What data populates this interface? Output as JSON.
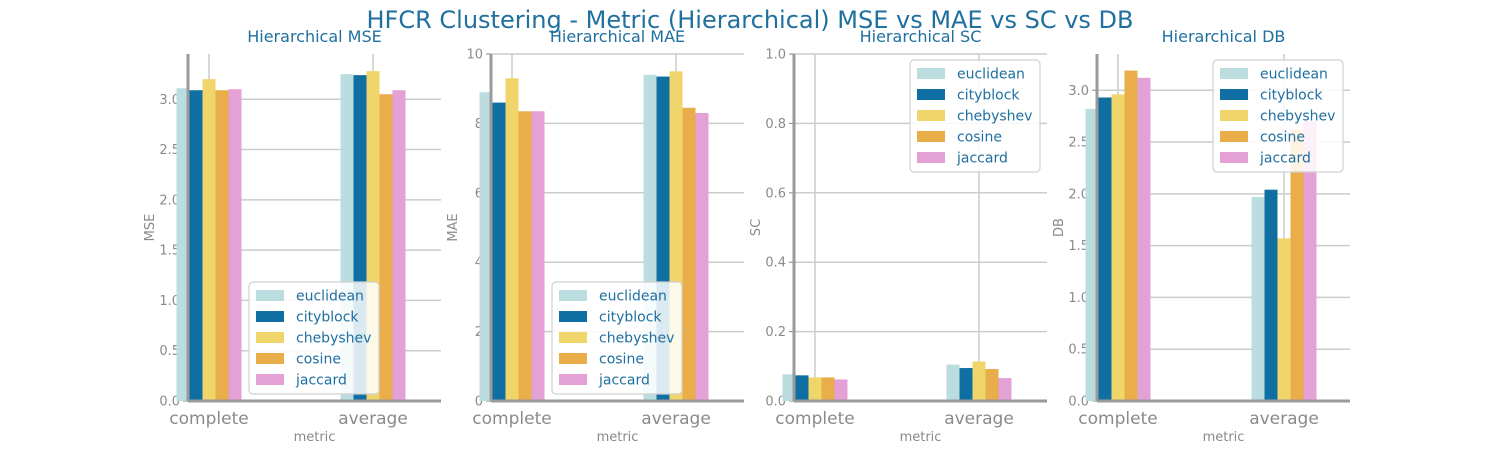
{
  "figure": {
    "title": "HFCR Clustering - Metric (Hierarchical) MSE vs MAE vs SC vs DB"
  },
  "colors": {
    "euclidean": "#bcdde0",
    "cityblock": "#0f6fa3",
    "chebyshev": "#f0d56a",
    "cosine": "#e9ad4a",
    "jaccard": "#e3a1d6",
    "axis": "#9a9a9a",
    "grid": "#cccccc",
    "text": "#1f6f9f"
  },
  "chart_data": [
    {
      "type": "bar",
      "title": "Hierarchical MSE",
      "xlabel": "metric",
      "ylabel": "MSE",
      "categories": [
        "complete",
        "average"
      ],
      "ylim": [
        0,
        3.45
      ],
      "yticks": [
        0.0,
        0.5,
        1.0,
        1.5,
        2.0,
        2.5,
        3.0
      ],
      "ytick_labels": [
        "0.0",
        "0.5",
        "1.0",
        "1.5",
        "2.0",
        "2.5",
        "3.0"
      ],
      "legend": "lower-center",
      "grid": true,
      "series": [
        {
          "name": "euclidean",
          "values": [
            3.11,
            3.25
          ]
        },
        {
          "name": "cityblock",
          "values": [
            3.09,
            3.24
          ]
        },
        {
          "name": "chebyshev",
          "values": [
            3.2,
            3.28
          ]
        },
        {
          "name": "cosine",
          "values": [
            3.09,
            3.05
          ]
        },
        {
          "name": "jaccard",
          "values": [
            3.1,
            3.09
          ]
        }
      ]
    },
    {
      "type": "bar",
      "title": "Hierarchical MAE",
      "xlabel": "metric",
      "ylabel": "MAE",
      "categories": [
        "complete",
        "average"
      ],
      "ylim": [
        0,
        10
      ],
      "yticks": [
        0,
        2,
        4,
        6,
        8,
        10
      ],
      "ytick_labels": [
        "0",
        "2",
        "4",
        "6",
        "8",
        "10"
      ],
      "legend": "lower-center",
      "grid": true,
      "series": [
        {
          "name": "euclidean",
          "values": [
            8.9,
            9.4
          ]
        },
        {
          "name": "cityblock",
          "values": [
            8.6,
            9.35
          ]
        },
        {
          "name": "chebyshev",
          "values": [
            9.3,
            9.5
          ]
        },
        {
          "name": "cosine",
          "values": [
            8.35,
            8.45
          ]
        },
        {
          "name": "jaccard",
          "values": [
            8.35,
            8.3
          ]
        }
      ]
    },
    {
      "type": "bar",
      "title": "Hierarchical SC",
      "xlabel": "metric",
      "ylabel": "SC",
      "categories": [
        "complete",
        "average"
      ],
      "ylim": [
        0,
        1.0
      ],
      "yticks": [
        0.0,
        0.2,
        0.4,
        0.6,
        0.8,
        1.0
      ],
      "ytick_labels": [
        "0.0",
        "0.2",
        "0.4",
        "0.6",
        "0.8",
        "1.0"
      ],
      "legend": "top-right",
      "grid": true,
      "series": [
        {
          "name": "euclidean",
          "values": [
            0.077,
            0.105
          ]
        },
        {
          "name": "cityblock",
          "values": [
            0.074,
            0.095
          ]
        },
        {
          "name": "chebyshev",
          "values": [
            0.068,
            0.114
          ]
        },
        {
          "name": "cosine",
          "values": [
            0.068,
            0.092
          ]
        },
        {
          "name": "jaccard",
          "values": [
            0.062,
            0.066
          ]
        }
      ]
    },
    {
      "type": "bar",
      "title": "Hierarchical DB",
      "xlabel": "metric",
      "ylabel": "DB",
      "categories": [
        "complete",
        "average"
      ],
      "ylim": [
        0,
        3.35
      ],
      "yticks": [
        0.0,
        0.5,
        1.0,
        1.5,
        2.0,
        2.5,
        3.0
      ],
      "ytick_labels": [
        "0.0",
        "0.5",
        "1.0",
        "1.5",
        "2.0",
        "2.5",
        "3.0"
      ],
      "legend": "top-right",
      "grid": true,
      "series": [
        {
          "name": "euclidean",
          "values": [
            2.82,
            1.97
          ]
        },
        {
          "name": "cityblock",
          "values": [
            2.93,
            2.04
          ]
        },
        {
          "name": "chebyshev",
          "values": [
            2.96,
            1.57
          ]
        },
        {
          "name": "cosine",
          "values": [
            3.19,
            2.62
          ]
        },
        {
          "name": "jaccard",
          "values": [
            3.12,
            2.7
          ]
        }
      ]
    }
  ]
}
